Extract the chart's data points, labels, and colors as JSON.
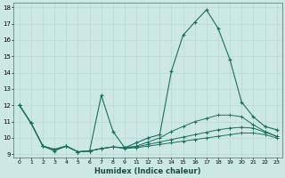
{
  "xlabel": "Humidex (Indice chaleur)",
  "bg_color": "#cce8e4",
  "grid_color": "#b8d8d4",
  "line_color": "#1a7060",
  "xlim": [
    0,
    23
  ],
  "ylim": [
    8.8,
    18.3
  ],
  "xticks": [
    0,
    1,
    2,
    3,
    4,
    5,
    6,
    7,
    8,
    9,
    11,
    12,
    13,
    14,
    15,
    16,
    17,
    18,
    19,
    20,
    21,
    22,
    23
  ],
  "yticks": [
    9,
    10,
    11,
    12,
    13,
    14,
    15,
    16,
    17,
    18
  ],
  "s1": [
    [
      0,
      12.0
    ],
    [
      1,
      10.9
    ],
    [
      2,
      9.5
    ],
    [
      3,
      9.2
    ],
    [
      4,
      9.5
    ],
    [
      5,
      9.15
    ],
    [
      6,
      9.2
    ],
    [
      7,
      12.6
    ],
    [
      8,
      10.4
    ],
    [
      9,
      9.4
    ],
    [
      11,
      9.7
    ],
    [
      12,
      10.0
    ],
    [
      13,
      10.2
    ],
    [
      14,
      14.1
    ],
    [
      15,
      16.3
    ],
    [
      16,
      17.1
    ],
    [
      17,
      17.85
    ],
    [
      18,
      16.7
    ],
    [
      19,
      14.8
    ],
    [
      20,
      12.2
    ],
    [
      21,
      11.3
    ],
    [
      22,
      10.7
    ],
    [
      23,
      10.5
    ]
  ],
  "s2": [
    [
      0,
      12.0
    ],
    [
      1,
      10.9
    ],
    [
      2,
      9.5
    ],
    [
      3,
      9.3
    ],
    [
      4,
      9.5
    ],
    [
      5,
      9.15
    ],
    [
      6,
      9.2
    ],
    [
      7,
      9.35
    ],
    [
      8,
      9.45
    ],
    [
      9,
      9.4
    ],
    [
      11,
      9.5
    ],
    [
      12,
      9.75
    ],
    [
      13,
      10.0
    ],
    [
      14,
      10.4
    ],
    [
      15,
      10.7
    ],
    [
      16,
      11.0
    ],
    [
      17,
      11.2
    ],
    [
      18,
      11.4
    ],
    [
      19,
      11.4
    ],
    [
      20,
      11.3
    ],
    [
      21,
      10.8
    ],
    [
      22,
      10.4
    ],
    [
      23,
      10.1
    ]
  ],
  "s3": [
    [
      0,
      12.0
    ],
    [
      1,
      10.9
    ],
    [
      2,
      9.5
    ],
    [
      3,
      9.3
    ],
    [
      4,
      9.5
    ],
    [
      5,
      9.15
    ],
    [
      6,
      9.2
    ],
    [
      7,
      9.35
    ],
    [
      8,
      9.45
    ],
    [
      9,
      9.4
    ],
    [
      11,
      9.45
    ],
    [
      12,
      9.6
    ],
    [
      13,
      9.75
    ],
    [
      14,
      9.9
    ],
    [
      15,
      10.05
    ],
    [
      16,
      10.2
    ],
    [
      17,
      10.35
    ],
    [
      18,
      10.5
    ],
    [
      19,
      10.6
    ],
    [
      20,
      10.65
    ],
    [
      21,
      10.6
    ],
    [
      22,
      10.35
    ],
    [
      23,
      10.1
    ]
  ],
  "s4": [
    [
      0,
      12.0
    ],
    [
      1,
      10.9
    ],
    [
      2,
      9.5
    ],
    [
      3,
      9.3
    ],
    [
      4,
      9.5
    ],
    [
      5,
      9.15
    ],
    [
      6,
      9.2
    ],
    [
      7,
      9.35
    ],
    [
      8,
      9.45
    ],
    [
      9,
      9.35
    ],
    [
      11,
      9.4
    ],
    [
      12,
      9.5
    ],
    [
      13,
      9.6
    ],
    [
      14,
      9.7
    ],
    [
      15,
      9.8
    ],
    [
      16,
      9.9
    ],
    [
      17,
      10.0
    ],
    [
      18,
      10.1
    ],
    [
      19,
      10.2
    ],
    [
      20,
      10.3
    ],
    [
      21,
      10.3
    ],
    [
      22,
      10.2
    ],
    [
      23,
      10.0
    ]
  ]
}
